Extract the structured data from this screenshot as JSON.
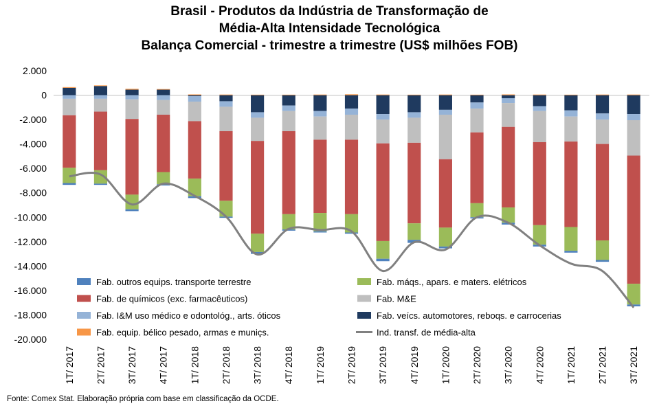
{
  "title_lines": [
    "Brasil - Produtos da Indústria de Transformação de",
    "Média-Alta Intensidade Tecnológica",
    "Balança Comercial - trimestre a trimestre (US$ milhões FOB)"
  ],
  "source": "Fonte: Comex Stat. Elaboração própria com base em classificação da OCDE.",
  "chart_data": {
    "type": "bar",
    "stacked": true,
    "title": "Brasil - Produtos da Indústria de Transformação de Média-Alta Intensidade Tecnológica Balança Comercial - trimestre a trimestre (US$ milhões FOB)",
    "categories": [
      "1T/ 2017",
      "2T/ 2017",
      "3T/ 2017",
      "4T/ 2017",
      "1T/ 2018",
      "2T/ 2018",
      "3T/ 2018",
      "4T/ 2018",
      "1T/ 2019",
      "2T/ 2019",
      "3T/ 2019",
      "4T/ 2019",
      "1T/ 2020",
      "2T/ 2020",
      "3T/ 2020",
      "4T/ 2020",
      "1T/ 2021",
      "2T/ 2021",
      "3T/ 2021"
    ],
    "ylim": [
      -20000,
      2000
    ],
    "yticks": [
      2000,
      0,
      -2000,
      -4000,
      -6000,
      -8000,
      -10000,
      -12000,
      -14000,
      -16000,
      -18000,
      -20000
    ],
    "ytick_labels": [
      "2.000",
      "0",
      "-2.000",
      "-4.000",
      "-6.000",
      "-8.000",
      "-10.000",
      "-12.000",
      "-14.000",
      "-16.000",
      "-18.000",
      "-20.000"
    ],
    "legend_position": "bottom-inside",
    "series": [
      {
        "name": "Fab. veícs. automotores, reboqs. e carrocerias",
        "color": "#1f3a5f",
        "values": [
          600,
          750,
          450,
          450,
          -80,
          -500,
          -1400,
          -850,
          -1300,
          -1100,
          -1550,
          -1400,
          -1200,
          -600,
          -250,
          -900,
          -1250,
          -1500,
          -1550
        ]
      },
      {
        "name": "Fab. equip. bélico pesado, armas e muniçs.",
        "color": "#f79646",
        "values": [
          60,
          50,
          70,
          50,
          60,
          50,
          40,
          40,
          50,
          70,
          50,
          40,
          50,
          40,
          60,
          50,
          40,
          50,
          50
        ]
      },
      {
        "name": "Fab. I&M uso médico e odontológ., arts. óticos",
        "color": "#95b3d7",
        "values": [
          -300,
          -300,
          -350,
          -400,
          -450,
          -450,
          -450,
          -450,
          -450,
          -500,
          -450,
          -450,
          -400,
          -500,
          -400,
          -400,
          -500,
          -500,
          -500
        ]
      },
      {
        "name": "Fab. M&E",
        "color": "#bfbfbf",
        "values": [
          -1350,
          -1050,
          -1600,
          -1200,
          -1600,
          -2000,
          -1900,
          -1650,
          -1900,
          -2050,
          -1950,
          -2050,
          -3650,
          -1950,
          -1950,
          -2550,
          -2050,
          -2000,
          -2900
        ]
      },
      {
        "name": "Fab. de químicos (exc. farmacêuticos)",
        "color": "#c0504d",
        "values": [
          -4300,
          -4800,
          -6200,
          -4700,
          -4700,
          -5700,
          -7600,
          -6800,
          -6000,
          -6100,
          -8000,
          -6600,
          -5600,
          -5800,
          -6600,
          -6800,
          -7000,
          -7900,
          -10500
        ]
      },
      {
        "name": "Fab. máqs., apars. e maters. elétricos",
        "color": "#9bbb59",
        "values": [
          -1250,
          -1100,
          -1200,
          -1000,
          -1450,
          -1300,
          -1500,
          -1250,
          -1500,
          -1500,
          -1450,
          -1350,
          -1550,
          -1150,
          -1250,
          -1600,
          -1950,
          -1600,
          -1700
        ]
      },
      {
        "name": "Fab. outros equips. transporte terrestre",
        "color": "#4f81bd",
        "values": [
          -150,
          -100,
          -150,
          -100,
          -150,
          -100,
          -150,
          -100,
          -100,
          -100,
          -200,
          -250,
          -150,
          -100,
          -150,
          -150,
          -150,
          -150,
          -150
        ]
      },
      {
        "name": "Ind. transf. de média-alta",
        "color": "#808080",
        "type": "line",
        "values": [
          -6650,
          -6500,
          -8950,
          -7250,
          -8250,
          -9950,
          -13050,
          -10950,
          -11050,
          -11150,
          -14400,
          -12050,
          -12650,
          -10000,
          -10450,
          -12300,
          -13800,
          -14400,
          -17400
        ]
      }
    ]
  }
}
